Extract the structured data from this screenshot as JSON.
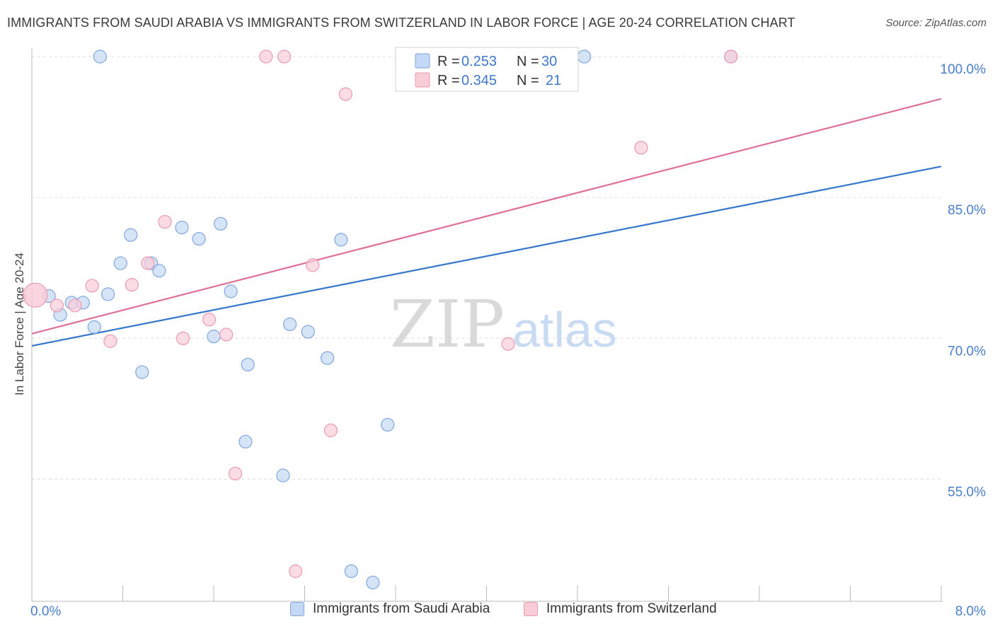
{
  "title": "IMMIGRANTS FROM SAUDI ARABIA VS IMMIGRANTS FROM SWITZERLAND IN LABOR FORCE | AGE 20-24 CORRELATION CHART",
  "source": "Source: ZipAtlas.com",
  "watermark": {
    "zip": "ZIP",
    "atlas": "atlas"
  },
  "colors": {
    "blue_fill": "#c5d8f5",
    "blue_stroke": "#7fa6e0",
    "blue_line": "#3477cc",
    "pink_fill": "#f9cdd8",
    "pink_stroke": "#ec99b0",
    "pink_line": "#e06f96",
    "tick_text": "#4a7fcc",
    "grid": "#dddddd"
  },
  "chart_data": {
    "type": "scatter",
    "title": "IMMIGRANTS FROM SAUDI ARABIA VS IMMIGRANTS FROM SWITZERLAND IN LABOR FORCE | AGE 20-24 CORRELATION CHART",
    "ylabel": "In Labor Force | Age 20-24",
    "xlim": [
      0,
      8
    ],
    "ylim": [
      42,
      100
    ],
    "y_ticks": [
      100,
      85,
      70,
      55
    ],
    "y_tick_labels": [
      "100.0%",
      "85.0%",
      "70.0%",
      "55.0%"
    ],
    "x_tick_labels": [
      "0.0%",
      "8.0%"
    ],
    "grid": true,
    "legend_position": "top-center",
    "series": [
      {
        "name": "Immigrants from Saudi Arabia",
        "legend_r_label": "R =",
        "legend_n_label": "N =",
        "r": "0.253",
        "n": "30",
        "trend": [
          [
            0,
            69.2
          ],
          [
            8,
            88.3
          ]
        ],
        "points": [
          [
            0.15,
            74.5
          ],
          [
            0.25,
            72.5
          ],
          [
            0.35,
            73.8
          ],
          [
            0.45,
            73.8
          ],
          [
            0.55,
            71.2
          ],
          [
            0.67,
            74.7
          ],
          [
            0.78,
            78.0
          ],
          [
            0.87,
            81.0
          ],
          [
            0.97,
            66.4
          ],
          [
            1.05,
            78.0
          ],
          [
            1.12,
            77.2
          ],
          [
            1.32,
            81.8
          ],
          [
            1.47,
            80.6
          ],
          [
            1.6,
            70.2
          ],
          [
            1.66,
            82.2
          ],
          [
            1.75,
            75.0
          ],
          [
            1.88,
            59.0
          ],
          [
            1.9,
            67.2
          ],
          [
            2.21,
            55.4
          ],
          [
            2.27,
            71.5
          ],
          [
            2.43,
            70.7
          ],
          [
            2.6,
            67.9
          ],
          [
            2.72,
            80.5
          ],
          [
            2.81,
            45.2
          ],
          [
            3.0,
            44.0
          ],
          [
            3.13,
            60.8
          ],
          [
            3.63,
            100.0
          ],
          [
            4.86,
            100.0
          ],
          [
            6.15,
            100.0
          ],
          [
            0.6,
            100.0
          ]
        ]
      },
      {
        "name": "Immigrants from Switzerland",
        "legend_r_label": "R =",
        "legend_n_label": "N =",
        "r": "0.345",
        "n": "21",
        "trend": [
          [
            0,
            70.5
          ],
          [
            8,
            95.5
          ]
        ],
        "points": [
          [
            0.03,
            74.6
          ],
          [
            0.22,
            73.5
          ],
          [
            0.38,
            73.5
          ],
          [
            0.53,
            75.6
          ],
          [
            0.69,
            69.7
          ],
          [
            0.88,
            75.7
          ],
          [
            1.02,
            78.0
          ],
          [
            1.17,
            82.4
          ],
          [
            1.33,
            70.0
          ],
          [
            1.56,
            72.0
          ],
          [
            1.71,
            70.4
          ],
          [
            1.79,
            55.6
          ],
          [
            2.06,
            100.0
          ],
          [
            2.22,
            100.0
          ],
          [
            2.32,
            45.2
          ],
          [
            2.47,
            77.8
          ],
          [
            2.63,
            60.2
          ],
          [
            2.76,
            96.0
          ],
          [
            4.19,
            69.4
          ],
          [
            5.36,
            90.3
          ],
          [
            6.15,
            100.0
          ]
        ]
      }
    ]
  }
}
